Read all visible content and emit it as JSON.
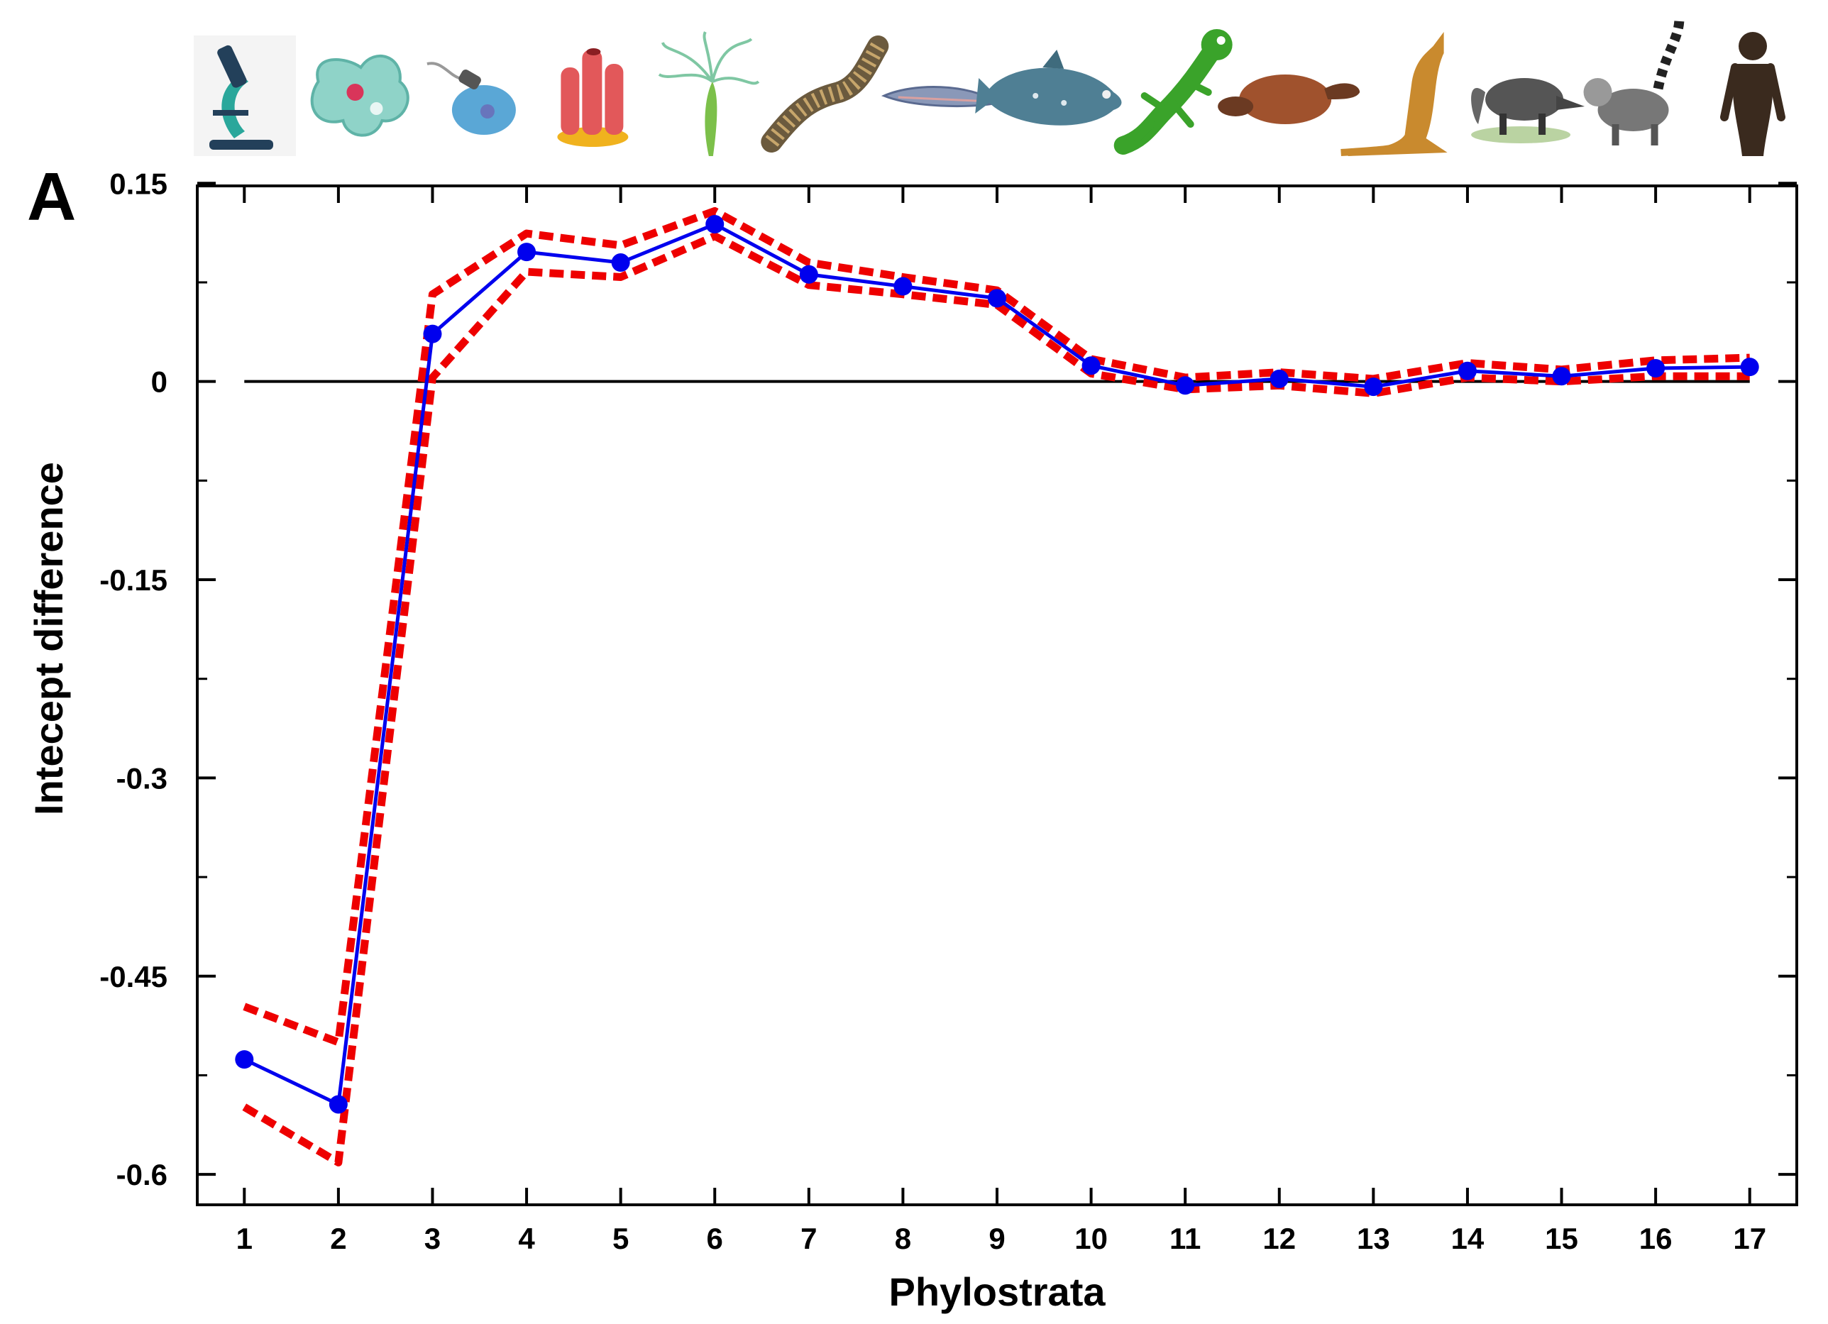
{
  "panel_label": "A",
  "icons": [
    {
      "name": "microscope-icon",
      "color": "#2aa79b"
    },
    {
      "name": "amoeba-icon",
      "color": "#8fd3c8"
    },
    {
      "name": "flagellate-icon",
      "color": "#5aa7d6"
    },
    {
      "name": "sponge-icon",
      "color": "#e2585a"
    },
    {
      "name": "hydra-icon",
      "color": "#7cc04a"
    },
    {
      "name": "worm-icon",
      "color": "#6b5a3e"
    },
    {
      "name": "lancelet-icon",
      "color": "#8a98b8"
    },
    {
      "name": "coelacanth-icon",
      "color": "#4f7f94"
    },
    {
      "name": "lizard-icon",
      "color": "#3aa32a"
    },
    {
      "name": "platypus-icon",
      "color": "#a0522d"
    },
    {
      "name": "kangaroo-icon",
      "color": "#c98a2e"
    },
    {
      "name": "anteater-icon",
      "color": "#555555"
    },
    {
      "name": "lemur-icon",
      "color": "#777777"
    },
    {
      "name": "ape-icon",
      "color": "#3a2a1e"
    }
  ],
  "chart_data": {
    "type": "line",
    "title": "",
    "xlabel": "Phylostrata",
    "ylabel": "Intecept difference",
    "x": [
      1,
      2,
      3,
      4,
      5,
      6,
      7,
      8,
      9,
      10,
      11,
      12,
      13,
      14,
      15,
      16,
      17
    ],
    "xlim": [
      0.5,
      17.5
    ],
    "ylim": [
      -0.623,
      0.148
    ],
    "yticks": [
      0.15,
      0,
      -0.15,
      -0.3,
      -0.45,
      -0.6
    ],
    "ytick_labels": [
      "0.15",
      "0",
      "-0.15",
      "-0.3",
      "-0.45",
      "-0.6"
    ],
    "xtick_labels": [
      "1",
      "2",
      "3",
      "4",
      "5",
      "6",
      "7",
      "8",
      "9",
      "10",
      "11",
      "12",
      "13",
      "14",
      "15",
      "16",
      "17"
    ],
    "zero_line": 0,
    "series": [
      {
        "name": "Intercept difference",
        "color": "#0000ee",
        "style": "solid-markers",
        "values": [
          -0.513,
          -0.547,
          0.036,
          0.098,
          0.09,
          0.119,
          0.081,
          0.072,
          0.063,
          0.012,
          -0.003,
          0.002,
          -0.004,
          0.008,
          0.004,
          0.01,
          0.011
        ]
      },
      {
        "name": "Upper confidence bound",
        "color": "#ee0000",
        "style": "dotted",
        "values": [
          -0.473,
          -0.5,
          0.066,
          0.112,
          0.103,
          0.129,
          0.09,
          0.079,
          0.069,
          0.017,
          0.003,
          0.007,
          0.002,
          0.014,
          0.009,
          0.016,
          0.018
        ]
      },
      {
        "name": "Lower confidence bound",
        "color": "#ee0000",
        "style": "dotted",
        "values": [
          -0.549,
          -0.591,
          0.003,
          0.083,
          0.079,
          0.11,
          0.073,
          0.066,
          0.058,
          0.006,
          -0.006,
          -0.003,
          -0.009,
          0.003,
          0.0,
          0.004,
          0.004
        ]
      }
    ]
  }
}
